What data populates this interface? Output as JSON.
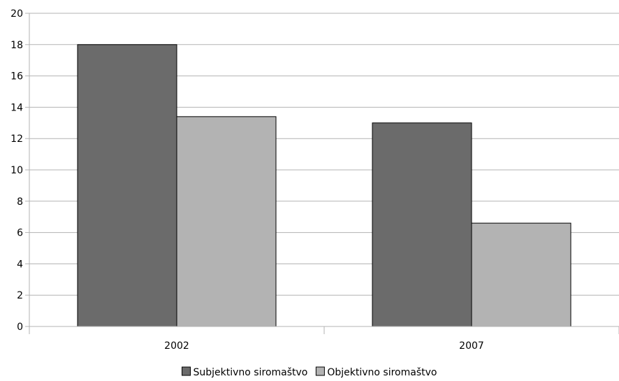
{
  "chart_data": {
    "type": "bar",
    "categories": [
      "2002",
      "2007"
    ],
    "series": [
      {
        "name": "Subjektivno siromaštvo",
        "values": [
          18,
          13
        ],
        "color": "#6b6b6b"
      },
      {
        "name": "Objektivno siromaštvo",
        "values": [
          13.4,
          6.6
        ],
        "color": "#b3b3b3"
      }
    ],
    "ylim": [
      0,
      20
    ],
    "yticks": [
      0,
      2,
      4,
      6,
      8,
      10,
      12,
      14,
      16,
      18,
      20
    ],
    "title": "",
    "xlabel": "",
    "ylabel": "",
    "grid": true,
    "legend_position": "bottom"
  }
}
